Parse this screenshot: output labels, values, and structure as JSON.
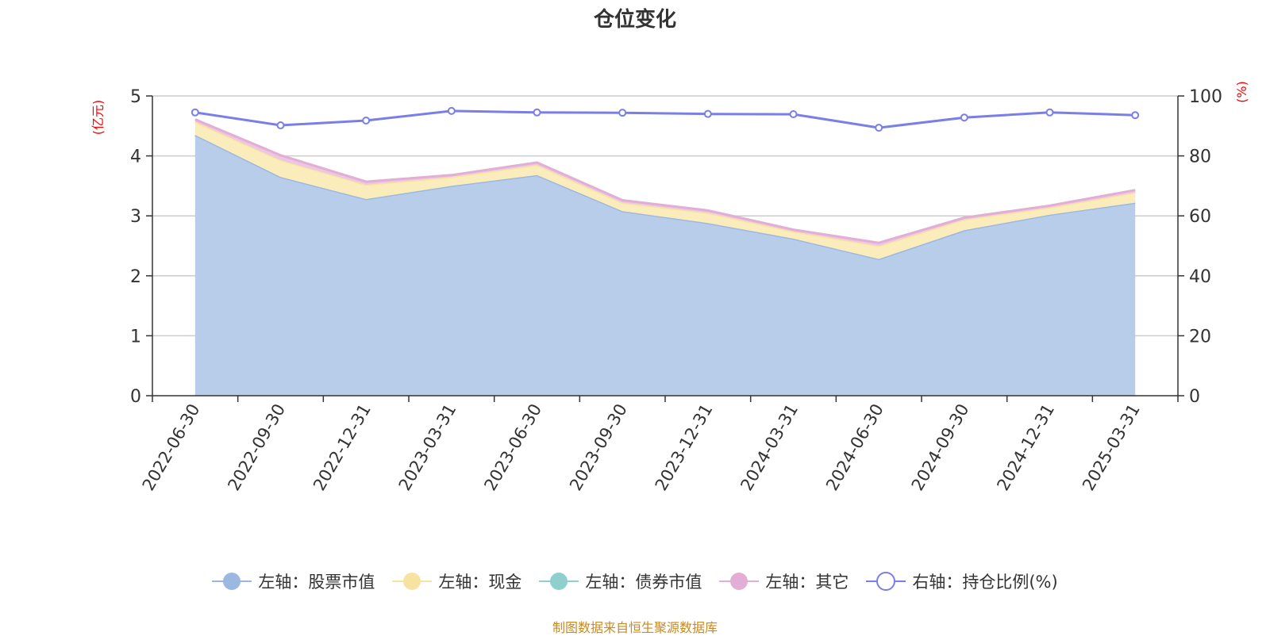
{
  "chart_data": {
    "type": "area",
    "title": "仓位变化",
    "categories": [
      "2022-06-30",
      "2022-09-30",
      "2022-12-31",
      "2023-03-31",
      "2023-06-30",
      "2023-09-30",
      "2023-12-31",
      "2024-03-31",
      "2024-06-30",
      "2024-09-30",
      "2024-12-31",
      "2025-03-31"
    ],
    "left_axis": {
      "unit": "(亿元)",
      "ylim": [
        0,
        5
      ],
      "ticks": [
        0,
        1,
        2,
        3,
        4,
        5
      ]
    },
    "right_axis": {
      "unit": "(%)",
      "ylim": [
        0,
        100
      ],
      "ticks": [
        0,
        20,
        40,
        60,
        80,
        100
      ]
    },
    "series": [
      {
        "name": "左轴：股票市值",
        "type": "area",
        "axis": "left",
        "color": "#9db8e0",
        "fill": "#b8cdea",
        "values": [
          4.35,
          3.65,
          3.28,
          3.5,
          3.68,
          3.08,
          2.88,
          2.62,
          2.28,
          2.76,
          3.02,
          3.22
        ]
      },
      {
        "name": "左轴：现金",
        "type": "area",
        "axis": "left",
        "color": "#f7e3a1",
        "fill": "#fbecbc",
        "values": [
          0.22,
          0.28,
          0.24,
          0.15,
          0.17,
          0.14,
          0.17,
          0.12,
          0.22,
          0.18,
          0.12,
          0.17
        ]
      },
      {
        "name": "左轴：债券市值",
        "type": "area",
        "axis": "left",
        "color": "#8fd0cf",
        "fill": "#bde3e2",
        "values": [
          0,
          0,
          0,
          0,
          0,
          0,
          0,
          0,
          0,
          0,
          0,
          0
        ]
      },
      {
        "name": "左轴：其它",
        "type": "area",
        "axis": "left",
        "color": "#e2aed6",
        "fill": "#ecc6e4",
        "values": [
          0.04,
          0.08,
          0.05,
          0.03,
          0.04,
          0.04,
          0.04,
          0.03,
          0.05,
          0.03,
          0.03,
          0.04
        ]
      },
      {
        "name": "右轴：持仓比例(%)",
        "type": "line",
        "axis": "right",
        "color": "#7a7fe8",
        "values": [
          94.5,
          90.2,
          91.8,
          95.0,
          94.5,
          94.4,
          94.0,
          93.9,
          89.4,
          92.8,
          94.5,
          93.6
        ]
      }
    ],
    "grid": true,
    "legend_position": "bottom"
  },
  "footer": {
    "source": "制图数据来自恒生聚源数据库"
  }
}
